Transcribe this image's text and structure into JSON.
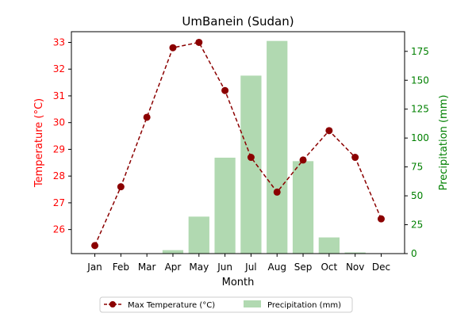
{
  "chart_data": {
    "type": "bar+line",
    "title": "UmBanein (Sudan)",
    "xlabel": "Month",
    "ylabel_left": "Temperature (°C)",
    "ylabel_right": "Precipitation (mm)",
    "categories": [
      "Jan",
      "Feb",
      "Mar",
      "Apr",
      "May",
      "Jun",
      "Jul",
      "Aug",
      "Sep",
      "Oct",
      "Nov",
      "Dec"
    ],
    "ylim_left": [
      25.1,
      33.4
    ],
    "ylim_right": [
      0,
      192
    ],
    "yticks_left": [
      26,
      27,
      28,
      29,
      30,
      31,
      32,
      33
    ],
    "yticks_right": [
      0,
      25,
      50,
      75,
      100,
      125,
      150,
      175
    ],
    "grid": false,
    "legend_placement": "bottom-center",
    "series": [
      {
        "name": "Max Temperature (°C)",
        "type": "line",
        "axis": "left",
        "color": "#8b0000",
        "values": [
          25.4,
          27.6,
          30.2,
          32.8,
          33.0,
          31.2,
          28.7,
          27.4,
          28.6,
          29.7,
          28.7,
          26.4
        ]
      },
      {
        "name": "Precipitation (mm)",
        "type": "bar",
        "axis": "right",
        "color": "#b1d9b1",
        "values": [
          0,
          0,
          0,
          3,
          32,
          83,
          154,
          184,
          80,
          14,
          1,
          0
        ]
      }
    ],
    "colors": {
      "left_axis": "#ff0000",
      "right_axis": "#008000"
    }
  }
}
